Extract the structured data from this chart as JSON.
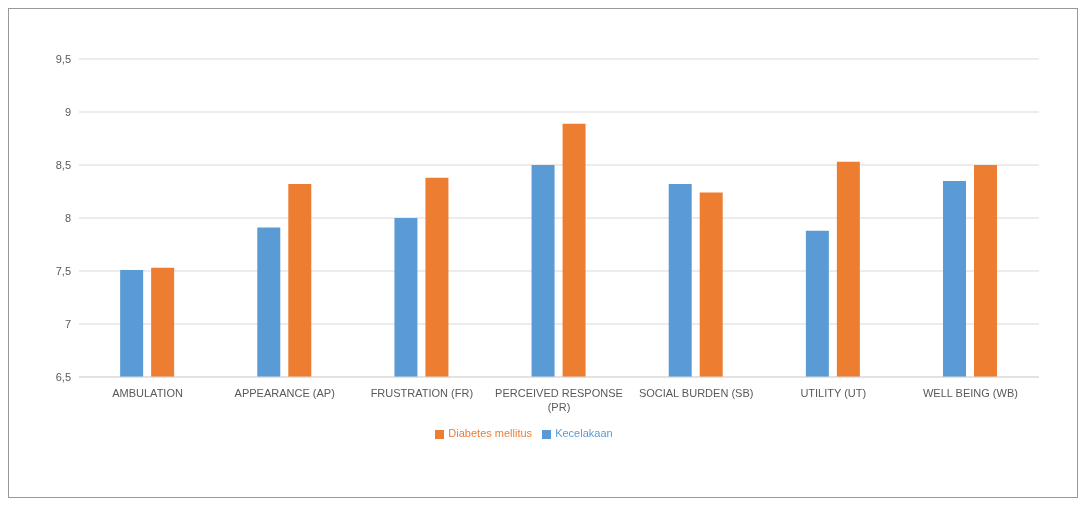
{
  "chart_data": {
    "type": "bar",
    "categories": [
      "AMBULATION",
      "APPEARANCE (AP)",
      "FRUSTRATION (FR)",
      "PERCEIVED RESPONSE (PR)",
      "SOCIAL BURDEN (SB)",
      "UTILITY (UT)",
      "WELL BEING (WB)"
    ],
    "series": [
      {
        "name": "Kecelakaan",
        "color": "#5b9bd5",
        "values": [
          7.51,
          7.91,
          8.0,
          8.5,
          8.32,
          7.88,
          8.35
        ]
      },
      {
        "name": "Diabetes mellitus",
        "color": "#ed7d31",
        "values": [
          7.53,
          8.32,
          8.38,
          8.89,
          8.24,
          8.53,
          8.5
        ]
      }
    ],
    "ylim": [
      6.5,
      9.5
    ],
    "yticks": [
      {
        "value": 6.5,
        "label": "6,5"
      },
      7,
      {
        "value": 7.5,
        "label": "7,5"
      },
      8,
      {
        "value": 8.5,
        "label": "8,5"
      },
      9,
      {
        "value": 9.5,
        "label": "9,5"
      }
    ],
    "grid": "y",
    "legend": "bottom"
  }
}
